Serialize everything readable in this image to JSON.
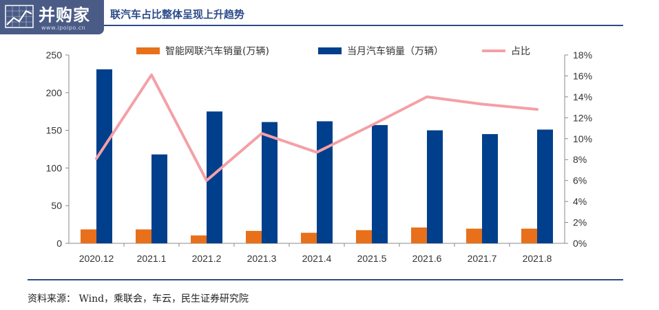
{
  "logo": {
    "text": "并购家",
    "url": "www.ipoipo.cn"
  },
  "title": "联汽车占比整体呈现上升趋势",
  "source": "资料来源： Wind，乘联会，车云，民生证券研究院",
  "colors": {
    "smart_bar": "#e8701a",
    "total_bar": "#003f8c",
    "ratio_line": "#f4a0a6",
    "title": "#2c4a8a",
    "rule": "#2c4a8a",
    "axis_text": "#333333"
  },
  "chart_data": {
    "type": "bar+line",
    "categories": [
      "2020.12",
      "2021.1",
      "2021.2",
      "2021.3",
      "2021.4",
      "2021.5",
      "2021.6",
      "2021.7",
      "2021.8"
    ],
    "series": [
      {
        "name": "智能网联汽车销量(万辆)",
        "type": "bar",
        "axis": "left",
        "values": [
          18.5,
          18.5,
          10.5,
          16.5,
          14.0,
          17.5,
          21.0,
          19.5,
          19.5
        ]
      },
      {
        "name": "当月汽车销量（万辆）",
        "type": "bar",
        "axis": "left",
        "values": [
          231,
          118,
          175,
          161,
          162,
          157,
          150,
          145,
          151
        ]
      },
      {
        "name": "占比",
        "type": "line",
        "axis": "right",
        "values": [
          8.1,
          16.1,
          6.0,
          10.5,
          8.7,
          11.3,
          14.0,
          13.3,
          12.8
        ]
      }
    ],
    "y_left": {
      "min": 0,
      "max": 250,
      "ticks": [
        "0",
        "50",
        "100",
        "150",
        "200",
        "250"
      ]
    },
    "y_right": {
      "min": 0,
      "max": 18,
      "ticks": [
        "0%",
        "2%",
        "4%",
        "6%",
        "8%",
        "10%",
        "12%",
        "14%",
        "16%",
        "18%"
      ]
    },
    "legend_position": "top",
    "grid": false
  }
}
